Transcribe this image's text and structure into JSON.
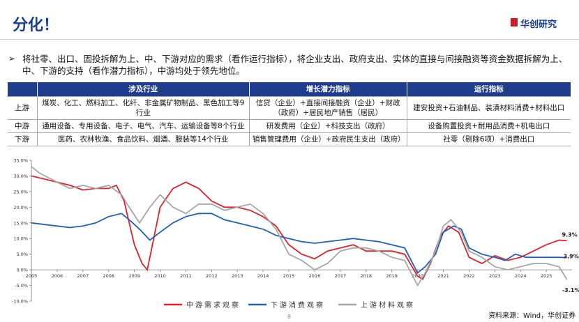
{
  "header": {
    "title": "分化！",
    "logo": "华创研究"
  },
  "bullet": "将社零、出口、固投拆解为上、中、下游对应的需求（看作运行指标），将企业支出、政府支出、实体的直接与间接融资等资金数据拆解为上、中、下游的支持（看作潜力指标），中游均处于领先地位。",
  "table": {
    "header": [
      "",
      "涉及行业",
      "增长潜力指标",
      "运行指标"
    ],
    "rows": [
      [
        "上游",
        "煤炭、化工、燃料加工、化纤、非金属矿物制品、黑色加工等9行业",
        "信贷（企业）+直接间接融资（企业）+财政（政府）+居民地产销售（居民）",
        "建安投资+石油制品、装潢材料消费+材料出口"
      ],
      [
        "中游",
        "通用设备、专用设备、电子、电气、汽车、运输设备等8个行业",
        "研发费用（企业）+科技支出（政府）",
        "设备购置投资+耐用品消费+机电出口"
      ],
      [
        "下游",
        "医药、农林牧渔、食品饮料、烟酒、服装等14个行业",
        "销售管理费用（企业）+政府民生支出（政府）",
        "社零（剔除6项）+消费出口"
      ]
    ]
  },
  "chart_data": {
    "type": "line",
    "xlim": [
      2005,
      2026
    ],
    "xticks": [
      2005,
      2006,
      2007,
      2008,
      2009,
      2010,
      2011,
      2012,
      2013,
      2014,
      2015,
      2016,
      2017,
      2018,
      2019,
      2020,
      2021,
      2022,
      2023,
      2024,
      2025
    ],
    "ylim": [
      -10,
      35
    ],
    "yticks": [
      {
        "value": -10,
        "label": "-10.0%"
      },
      {
        "value": -5,
        "label": "-5.0%"
      },
      {
        "value": 0,
        "label": "0.0%"
      },
      {
        "value": 5,
        "label": "5.0%"
      },
      {
        "value": 10,
        "label": "10.0%"
      },
      {
        "value": 15,
        "label": "15.0%"
      },
      {
        "value": 20,
        "label": "20.0%"
      },
      {
        "value": 25,
        "label": "25.0%"
      },
      {
        "value": 30,
        "label": "30.0%"
      },
      {
        "value": 35,
        "label": "35.0%"
      }
    ],
    "series": [
      {
        "name": "中游需求观察",
        "color": "#e0202a",
        "end_label": "9.3%",
        "x": [
          2005,
          2005.5,
          2006,
          2006.5,
          2007,
          2007.5,
          2008,
          2008.3,
          2008.6,
          2009,
          2009.3,
          2009.5,
          2009.7,
          2010,
          2010.5,
          2011,
          2011.5,
          2012,
          2012.5,
          2013,
          2013.5,
          2014,
          2014.5,
          2015,
          2015.5,
          2016,
          2016.5,
          2017,
          2017.5,
          2018,
          2018.5,
          2019,
          2019.5,
          2020,
          2020.2,
          2020.5,
          2020.9,
          2021.2,
          2021.6,
          2022,
          2022.5,
          2023,
          2023.5,
          2024,
          2024.5,
          2025,
          2025.5,
          2025.8
        ],
        "values": [
          30,
          29,
          28,
          27,
          25.5,
          26,
          26,
          27,
          22,
          8,
          2,
          0,
          8,
          20,
          26,
          28,
          26,
          22,
          20,
          20,
          19,
          17,
          14,
          8,
          5,
          3.5,
          6,
          7,
          8,
          6,
          6,
          6,
          5,
          -2,
          -3,
          2,
          11,
          14,
          12,
          4,
          2,
          4.5,
          3,
          4,
          6,
          8,
          9.5,
          9.3
        ]
      },
      {
        "name": "下游消费观察",
        "color": "#1f5fb8",
        "end_label": "3.9%",
        "x": [
          2005,
          2006,
          2006.5,
          2007,
          2007.5,
          2008,
          2008.5,
          2008.8,
          2009.2,
          2009.6,
          2010,
          2010.5,
          2011,
          2011.5,
          2012,
          2012.5,
          2013,
          2013.5,
          2014,
          2014.5,
          2015,
          2015.5,
          2016,
          2017,
          2017.5,
          2018,
          2018.5,
          2019,
          2019.5,
          2020,
          2020.3,
          2020.7,
          2021,
          2021.4,
          2021.7,
          2022,
          2022.5,
          2023,
          2023.4,
          2023.8,
          2024.2,
          2024.6,
          2025,
          2025.5,
          2025.8
        ],
        "values": [
          15,
          14,
          13.5,
          14,
          15,
          17,
          18,
          16,
          13,
          9.5,
          12,
          15,
          17,
          18,
          18,
          16,
          15,
          14,
          13,
          11,
          10,
          9,
          8.5,
          9.5,
          10,
          9.5,
          9,
          8,
          7,
          -1,
          1,
          5,
          12,
          14,
          13,
          7,
          5,
          4,
          3,
          5,
          4,
          4,
          4,
          4,
          3.9
        ]
      },
      {
        "name": "上游材料观察",
        "color": "#a6a6a6",
        "end_label": "-3.1%",
        "x": [
          2005,
          2005.3,
          2006,
          2006.5,
          2007,
          2007.5,
          2008,
          2008.5,
          2008.8,
          2009.2,
          2009.6,
          2010,
          2010.5,
          2011,
          2011.5,
          2012,
          2012.5,
          2013,
          2013.5,
          2014,
          2014.5,
          2015,
          2015.5,
          2016,
          2016.5,
          2017,
          2017.5,
          2018,
          2018.5,
          2019,
          2019.5,
          2020,
          2020.3,
          2020.7,
          2021,
          2021.3,
          2021.7,
          2022,
          2022.5,
          2023,
          2023.5,
          2024,
          2024.5,
          2025,
          2025.5,
          2025.8
        ],
        "values": [
          33,
          31,
          28,
          26,
          27,
          26,
          27,
          24,
          20,
          15,
          20,
          24,
          20,
          18,
          21,
          21,
          19,
          20,
          21,
          18,
          13,
          5,
          3,
          0,
          2,
          6,
          7,
          7,
          6,
          4,
          3,
          -5,
          -1,
          6,
          14,
          16,
          12,
          6,
          4,
          1,
          0,
          1,
          2,
          2,
          1,
          -3.1
        ]
      }
    ]
  },
  "source": "资料来源：Wind，华创证券",
  "page_number": "8"
}
